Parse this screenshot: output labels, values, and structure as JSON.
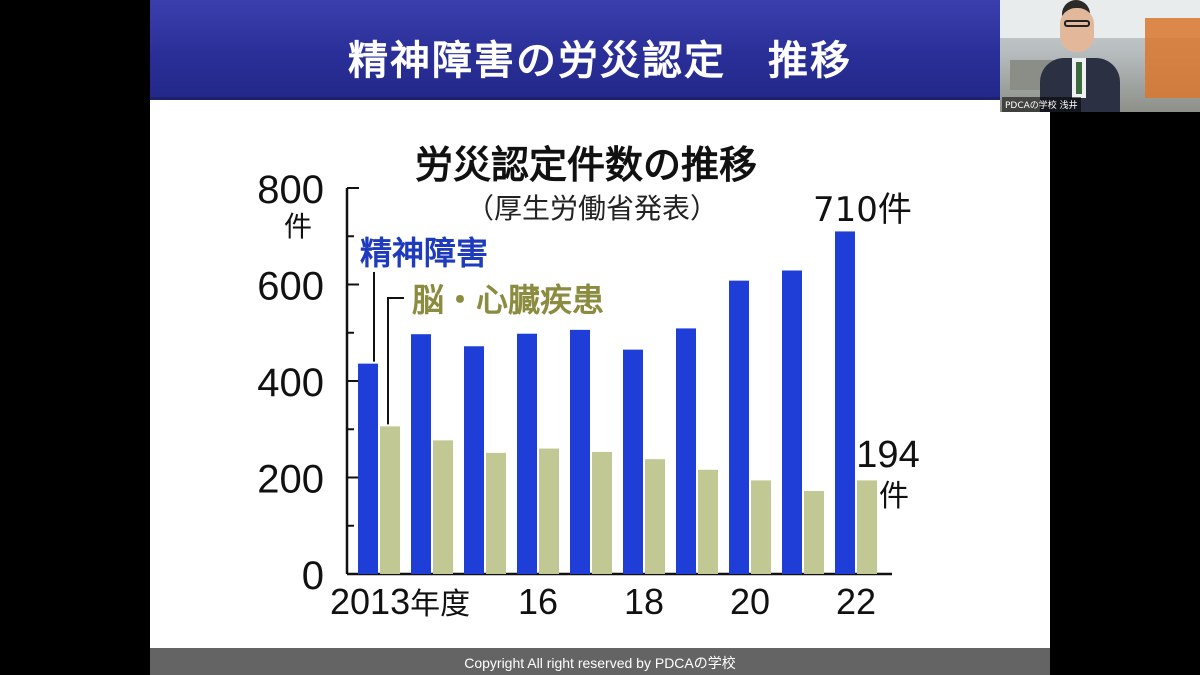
{
  "slide": {
    "title": "精神障害の労災認定　推移",
    "footer": "Copyright All right reserved by PDCAの学校"
  },
  "video": {
    "participant_label": "PDCAの学校 浅井"
  },
  "colors": {
    "header": "#2a2f98",
    "series_mental": "#1f3ed8",
    "series_cardio": "#c2c894",
    "series_mental_label": "#1f3bbd",
    "series_cardio_label": "#8b8c3f",
    "footer": "#646464"
  },
  "chart_data": {
    "type": "bar",
    "title": "労災認定件数の推移",
    "subtitle": "（厚生労働省発表）",
    "ylabel": "800\n件",
    "ylim": [
      0,
      800
    ],
    "yticks": [
      "0",
      "200",
      "400",
      "600",
      "800"
    ],
    "y_unit": "件",
    "x": [
      2013,
      2014,
      2015,
      2016,
      2017,
      2018,
      2019,
      2020,
      2021,
      2022
    ],
    "x_tick_labels": [
      {
        "x": 2013,
        "label": "2013年度"
      },
      {
        "x": 2016,
        "label": "16"
      },
      {
        "x": 2018,
        "label": "18"
      },
      {
        "x": 2020,
        "label": "20"
      },
      {
        "x": 2022,
        "label": "22"
      }
    ],
    "series": [
      {
        "name": "精神障害",
        "values": [
          436,
          497,
          472,
          498,
          506,
          465,
          509,
          608,
          629,
          710
        ]
      },
      {
        "name": "脳・心臓疾患",
        "values": [
          306,
          277,
          251,
          260,
          253,
          238,
          216,
          194,
          172,
          194
        ]
      }
    ],
    "annotations": {
      "last_mental": "710件",
      "last_cardio_number": "194",
      "last_cardio_unit": "件"
    }
  }
}
